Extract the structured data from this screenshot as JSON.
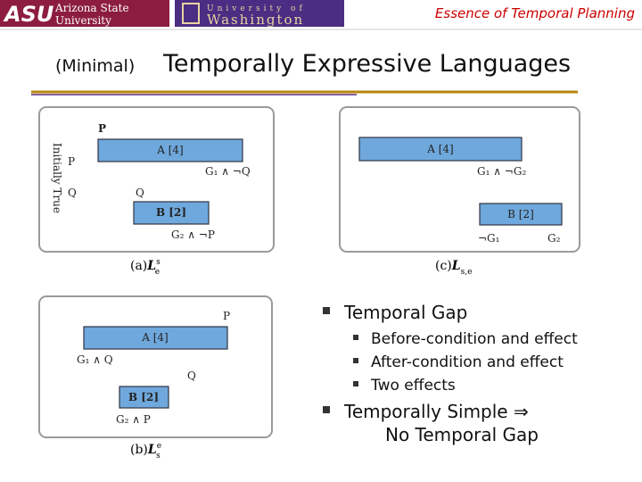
{
  "header": {
    "asu": {
      "mark": "ASU",
      "line1": "Arizona State",
      "line2": "University"
    },
    "uw": {
      "line1": "University of",
      "line2": "Washington"
    },
    "topic": "Essence of Temporal Planning"
  },
  "title": {
    "qualifier": "(Minimal)",
    "main": "Temporally Expressive Languages"
  },
  "diagrams": [
    {
      "caption": {
        "prefix": "(a)",
        "symbol": "L",
        "sup": "s",
        "sub": "e"
      },
      "side_label": "Initially True",
      "labels": [
        "P",
        "P",
        "Q",
        "G₁ ∧ ¬Q",
        "Q",
        "G₂ ∧ ¬P"
      ],
      "actions": [
        "A [4]",
        "B [2]"
      ]
    },
    {
      "caption": {
        "prefix": "(b)",
        "symbol": "L",
        "sup": "e",
        "sub": "s"
      },
      "labels": [
        "P",
        "G₁ ∧ Q",
        "Q",
        "G₂ ∧ P"
      ],
      "actions": [
        "A [4]",
        "B [2]"
      ]
    },
    {
      "caption": {
        "prefix": "(c)",
        "symbol": "L",
        "sub": "s,e"
      },
      "labels": [
        "G₁ ∧ ¬G₂",
        "¬G₁",
        "G₂"
      ],
      "actions": [
        "A [4]",
        "B [2]"
      ]
    }
  ],
  "bullets": [
    {
      "text": "Temporal Gap",
      "children": [
        "Before-condition and effect",
        "After-condition and effect",
        "Two effects"
      ]
    },
    {
      "text": "Temporally Simple ⇒",
      "continuation": "No Temporal Gap"
    }
  ]
}
